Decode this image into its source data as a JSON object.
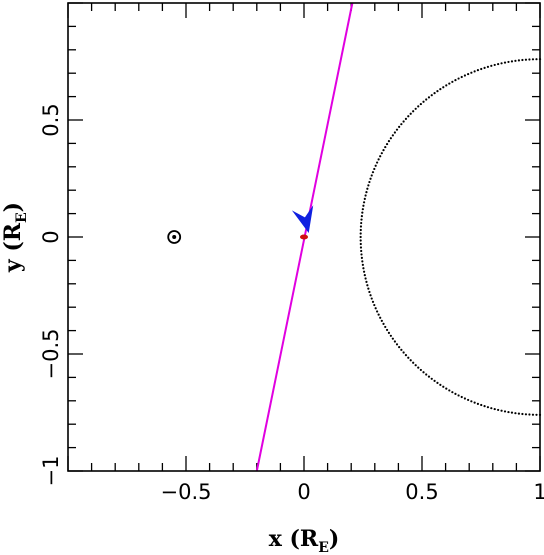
{
  "chart_data": {
    "type": "line",
    "xlabel": {
      "prefix": "x (R",
      "sub": "E",
      "suffix": ")"
    },
    "ylabel": {
      "prefix": "y (R",
      "sub": "E",
      "suffix": ")"
    },
    "xlim": [
      -1,
      1
    ],
    "ylim": [
      -1,
      1
    ],
    "x_ticks": [
      {
        "value": -0.5,
        "label": "−0.5"
      },
      {
        "value": 0,
        "label": "0"
      },
      {
        "value": 0.5,
        "label": "0.5"
      },
      {
        "value": 1,
        "label": "1"
      }
    ],
    "y_ticks": [
      {
        "value": -1,
        "label": "−1"
      },
      {
        "value": -0.5,
        "label": "−0.5"
      },
      {
        "value": 0,
        "label": "0"
      },
      {
        "value": 0.5,
        "label": "0.5"
      }
    ],
    "minor_step": 0.1,
    "grid": false,
    "series": [
      {
        "type": "line",
        "color": "#e000e0",
        "x": [
          -0.2,
          0.205
        ],
        "y": [
          -1,
          1
        ]
      },
      {
        "type": "dotted-arc",
        "color": "#000000",
        "center": [
          1.0,
          0
        ],
        "radius": 0.76,
        "theta_deg": [
          90,
          270
        ]
      }
    ],
    "markers": [
      {
        "type": "sun-symbol",
        "x": -0.55,
        "y": 0,
        "color": "#000000"
      },
      {
        "type": "red-dot",
        "x": 0.0,
        "y": 0,
        "color": "#d01010"
      },
      {
        "type": "arrow",
        "x": 0.02,
        "y": 0.0,
        "dx": -0.02,
        "dy": 0.1,
        "color": "#1020e0"
      }
    ]
  }
}
